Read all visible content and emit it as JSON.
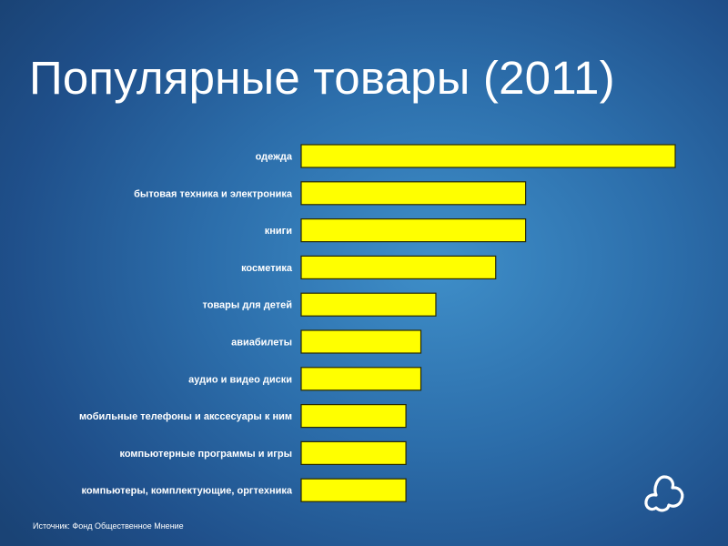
{
  "title": "Популярные товары (2011)",
  "source": "Источник: Фонд Общественное Мнение",
  "logo_icon": "fom-cloud-logo-icon",
  "colors": {
    "background": "#2c6eab",
    "bar_fill": "#ffff00",
    "text": "#ffffff"
  },
  "chart_data": {
    "type": "bar",
    "orientation": "horizontal",
    "title": "Популярные товары (2011)",
    "categories": [
      "одежда",
      "бытовая техника и электроника",
      "книги",
      "косметика",
      "товары для детей",
      "авиабилеты",
      "аудио и видео диски",
      "мобильные телефоны и акссесуары к ним",
      "компьютерные программы и игры",
      "компьютеры, комплектующие, оргтехника"
    ],
    "values": [
      25,
      15,
      15,
      13,
      9,
      8,
      8,
      7,
      7,
      7
    ],
    "xlim": [
      0,
      25
    ],
    "grid": false,
    "legend": "none"
  }
}
